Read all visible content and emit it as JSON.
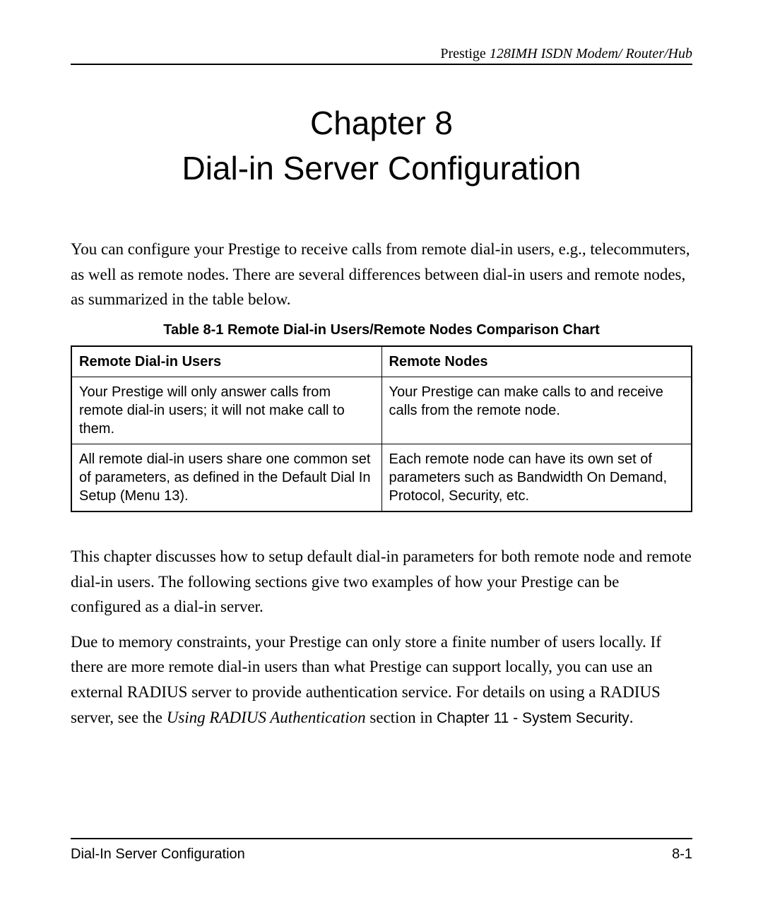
{
  "header": {
    "brand": "Prestige ",
    "model": "128IMH  ISDN Modem/ Router/Hub"
  },
  "chapter": {
    "number": "Chapter 8",
    "title": "Dial-in Server Configuration"
  },
  "intro": "You can configure your Prestige to receive calls from remote dial-in users, e.g., telecommuters, as well as remote nodes. There are several differences between dial-in users and remote nodes, as summarized in the table below.",
  "table": {
    "caption": "Table 8-1 Remote Dial-in Users/Remote Nodes Comparison Chart",
    "headers": {
      "left": "Remote Dial-in Users",
      "right": "Remote Nodes"
    },
    "rows": [
      {
        "left": "Your Prestige will only answer calls from remote dial-in users; it will not make call to them.",
        "right": "Your Prestige can make calls to and receive calls from the remote node."
      },
      {
        "left": "All remote dial-in users share one common set of parameters, as defined in the Default Dial In Setup (Menu 13).",
        "right": "Each remote node can have its own set of parameters such as Bandwidth On Demand, Protocol, Security, etc."
      }
    ]
  },
  "para2": "This chapter discusses how to setup default dial-in parameters for both remote node and remote dial-in users. The following sections give two examples of how your Prestige can be configured as a dial-in server.",
  "para3": {
    "pre": "Due to memory constraints, your Prestige can only store a finite number of users locally.  If there are more remote dial-in users than what Prestige can support locally, you can use an external RADIUS server to provide authentication service. For details on using a RADIUS server, see the ",
    "italic": "Using RADIUS Authentication",
    "mid": " section in ",
    "sans": "Chapter 11 - System Security",
    "end": "."
  },
  "footer": {
    "left": "Dial-In Server Configuration",
    "right": "8-1"
  }
}
